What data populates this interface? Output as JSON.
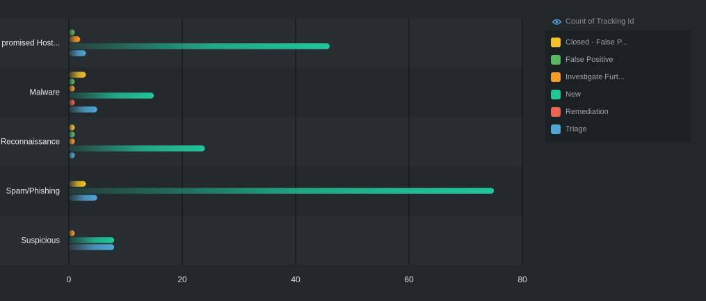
{
  "chart_data": {
    "type": "bar",
    "orientation": "horizontal",
    "title": "",
    "xlabel": "",
    "ylabel": "",
    "xlim": [
      0,
      80
    ],
    "x_ticks": [
      "0",
      "20",
      "40",
      "60",
      "80"
    ],
    "grid": true,
    "legend_position": "right",
    "legend_title": "Count of Tracking Id",
    "categories": [
      "promised Host...",
      "Malware",
      "Reconnaissance",
      "Spam/Phishing",
      "Suspicious"
    ],
    "series": [
      {
        "name": "Closed - False P...",
        "color": "#f2c12e",
        "values": [
          null,
          3,
          1,
          3,
          null
        ]
      },
      {
        "name": "False Positive",
        "color": "#5cb85c",
        "values": [
          1,
          1,
          1,
          null,
          null
        ]
      },
      {
        "name": "Investigate Furt...",
        "color": "#f59c2a",
        "values": [
          2,
          1,
          1,
          null,
          1
        ]
      },
      {
        "name": "New",
        "color": "#22c59a",
        "values": [
          46,
          15,
          24,
          75,
          8
        ]
      },
      {
        "name": "Remediation",
        "color": "#e8654f",
        "values": [
          null,
          1,
          null,
          null,
          null
        ]
      },
      {
        "name": "Triage",
        "color": "#4ea6d3",
        "values": [
          3,
          5,
          1,
          5,
          8
        ]
      }
    ]
  }
}
